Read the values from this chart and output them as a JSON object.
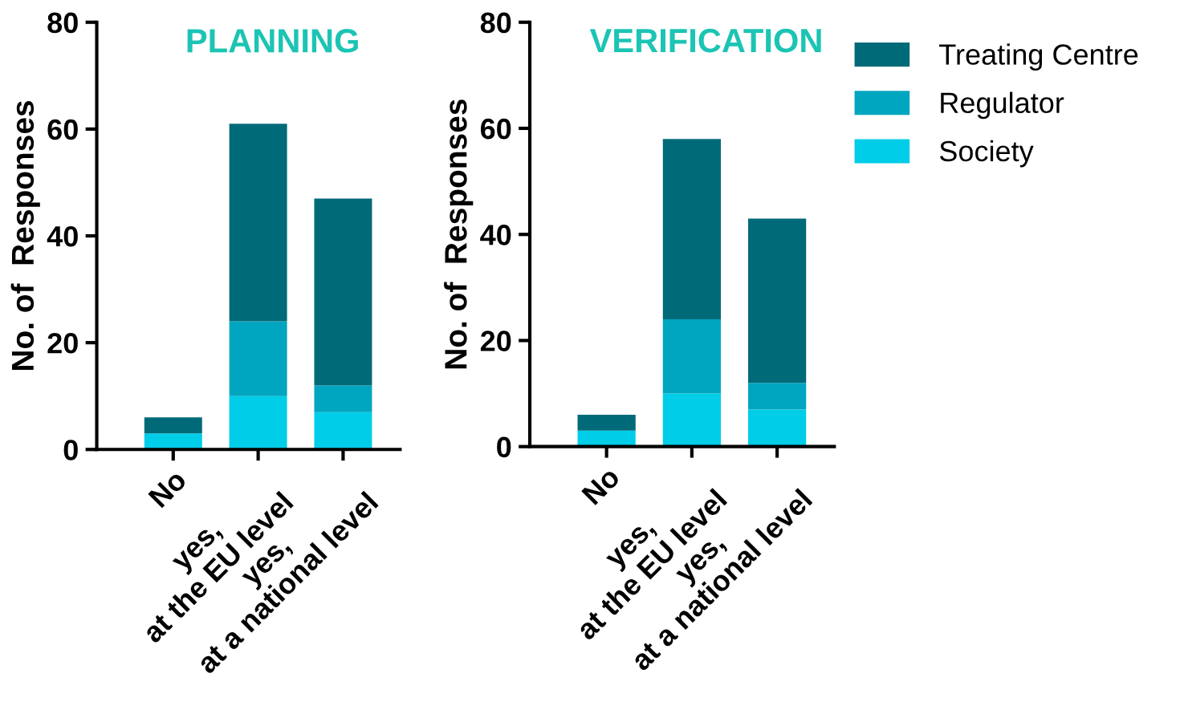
{
  "chart_data": [
    {
      "type": "bar",
      "title": "PLANNING",
      "ylabel": "No. of  Responses",
      "categories": [
        "No",
        "yes,\nat the EU level",
        "yes,\nat a national level"
      ],
      "stacked": true,
      "ylim": [
        0,
        80
      ],
      "yticks": [
        0,
        20,
        40,
        60,
        80
      ],
      "grid": false,
      "series": [
        {
          "color": "#00cde8",
          "values": [
            3,
            10,
            7
          ]
        },
        {
          "color": "#00a5c0",
          "values": [
            0,
            14,
            5
          ]
        },
        {
          "color": "#006a78",
          "values": [
            3,
            37,
            35
          ]
        }
      ]
    },
    {
      "type": "bar",
      "title": "VERIFICATION",
      "ylabel": "No. of  Responses",
      "categories": [
        "No",
        "yes,\nat the EU level",
        "yes,\nat a national level"
      ],
      "stacked": true,
      "ylim": [
        0,
        80
      ],
      "yticks": [
        0,
        20,
        40,
        60,
        80
      ],
      "grid": false,
      "legend": "right",
      "series": [
        {
          "name": "Society",
          "color": "#00cde8",
          "values": [
            3,
            10,
            7
          ]
        },
        {
          "name": "Regulator",
          "color": "#00a5c0",
          "values": [
            0,
            14,
            5
          ]
        },
        {
          "name": "Treating Centre",
          "color": "#006a78",
          "values": [
            3,
            34,
            31
          ]
        }
      ]
    }
  ]
}
